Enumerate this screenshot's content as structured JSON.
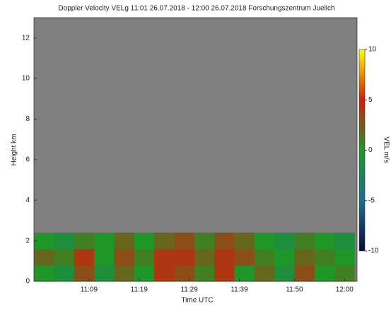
{
  "chart_data": {
    "type": "heatmap",
    "title": "Doppler Velocity VELg   11:01 26.07.2018 - 12:00 26.07.2018 Forschungszentrum Juelich",
    "x_label": "Time UTC",
    "y_label": "Height km",
    "colorbar_label": "VEL m/s",
    "xlim": [
      -2,
      62.5
    ],
    "ylim": [
      0,
      13
    ],
    "xticks": [
      {
        "value": 9,
        "label": "11:09"
      },
      {
        "value": 19,
        "label": "11:19"
      },
      {
        "value": 29,
        "label": "11:29"
      },
      {
        "value": 39,
        "label": "11:39"
      },
      {
        "value": 50,
        "label": "11:50"
      },
      {
        "value": 60,
        "label": "12:00"
      }
    ],
    "yticks": [
      0,
      2,
      4,
      6,
      8,
      10,
      12
    ],
    "clim": [
      -10,
      10
    ],
    "cticks": [
      -10,
      -5,
      0,
      5,
      10
    ],
    "colorscale": [
      "#0a0a3c",
      "#1e6e8c",
      "#1e9628",
      "#d21e0a",
      "#ffff00"
    ],
    "background": "#808080",
    "xbins": [
      -2,
      2,
      6,
      10,
      14,
      18,
      22,
      26,
      30,
      34,
      38,
      42,
      46,
      50,
      54,
      58,
      62
    ],
    "ybins": [
      0,
      0.8,
      1.6,
      2.4
    ],
    "z": [
      [
        0,
        -1,
        3,
        -1,
        2,
        0,
        4,
        3,
        1,
        4,
        0,
        2,
        -1,
        3,
        0,
        1
      ],
      [
        2,
        1,
        4,
        0,
        3,
        1,
        4,
        4,
        2,
        4,
        3,
        1,
        0,
        2,
        1,
        0
      ],
      [
        0,
        -1,
        1,
        0,
        2,
        0,
        2,
        3,
        1,
        3,
        2,
        0,
        -1,
        1,
        0,
        -1
      ]
    ]
  }
}
